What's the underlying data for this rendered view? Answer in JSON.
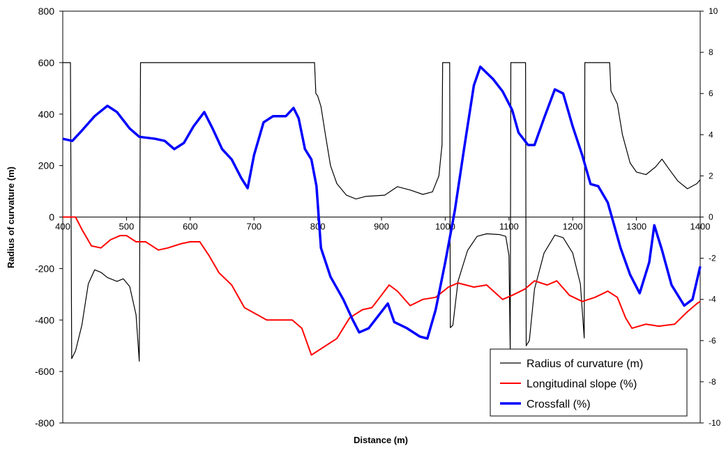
{
  "chart_data": {
    "type": "line",
    "xlabel": "Distance (m)",
    "ylabel": "Radius of curvature (m)",
    "x_ticks": [
      400,
      500,
      600,
      700,
      800,
      900,
      1000,
      1100,
      1200,
      1300,
      1400
    ],
    "y_left_ticks": [
      -800,
      -600,
      -400,
      -200,
      0,
      200,
      400,
      600,
      800
    ],
    "y_right_ticks": [
      -10,
      -8,
      -6,
      -4,
      -2,
      0,
      2,
      4,
      6,
      8,
      10
    ],
    "xlim": [
      400,
      1400
    ],
    "ylim_left": [
      -800,
      800
    ],
    "ylim_right": [
      -10,
      10
    ],
    "grid": false,
    "legend_position": "bottom-right",
    "series": [
      {
        "name": "Radius of curvature (m)",
        "axis": "left",
        "color": "#000000",
        "points": [
          [
            400,
            600
          ],
          [
            412,
            600
          ],
          [
            414,
            -550
          ],
          [
            420,
            -520
          ],
          [
            430,
            -420
          ],
          [
            440,
            -260
          ],
          [
            450,
            -205
          ],
          [
            460,
            -215
          ],
          [
            470,
            -235
          ],
          [
            485,
            -250
          ],
          [
            495,
            -240
          ],
          [
            505,
            -270
          ],
          [
            515,
            -380
          ],
          [
            520,
            -560
          ],
          [
            522,
            600
          ],
          [
            795,
            600
          ],
          [
            797,
            480
          ],
          [
            800,
            470
          ],
          [
            805,
            430
          ],
          [
            812,
            320
          ],
          [
            820,
            200
          ],
          [
            830,
            130
          ],
          [
            845,
            85
          ],
          [
            860,
            70
          ],
          [
            875,
            80
          ],
          [
            905,
            85
          ],
          [
            925,
            118
          ],
          [
            945,
            105
          ],
          [
            965,
            88
          ],
          [
            980,
            98
          ],
          [
            990,
            160
          ],
          [
            995,
            280
          ],
          [
            996,
            600
          ],
          [
            1007,
            600
          ],
          [
            1008,
            -430
          ],
          [
            1012,
            -420
          ],
          [
            1020,
            -250
          ],
          [
            1035,
            -130
          ],
          [
            1050,
            -75
          ],
          [
            1065,
            -65
          ],
          [
            1085,
            -68
          ],
          [
            1095,
            -75
          ],
          [
            1100,
            -150
          ],
          [
            1102,
            -520
          ],
          [
            1103,
            600
          ],
          [
            1126,
            600
          ],
          [
            1127,
            -500
          ],
          [
            1132,
            -480
          ],
          [
            1140,
            -280
          ],
          [
            1155,
            -140
          ],
          [
            1172,
            -70
          ],
          [
            1185,
            -80
          ],
          [
            1200,
            -140
          ],
          [
            1212,
            -260
          ],
          [
            1218,
            -470
          ],
          [
            1219,
            600
          ],
          [
            1258,
            600
          ],
          [
            1260,
            490
          ],
          [
            1270,
            440
          ],
          [
            1278,
            320
          ],
          [
            1290,
            210
          ],
          [
            1300,
            175
          ],
          [
            1315,
            165
          ],
          [
            1330,
            195
          ],
          [
            1340,
            225
          ],
          [
            1350,
            190
          ],
          [
            1365,
            140
          ],
          [
            1380,
            110
          ],
          [
            1395,
            130
          ],
          [
            1400,
            145
          ]
        ]
      },
      {
        "name": "Longitudinal slope (%)",
        "axis": "right",
        "color": "#ff0000",
        "points": [
          [
            400,
            0
          ],
          [
            420,
            0
          ],
          [
            430,
            -0.6
          ],
          [
            445,
            -1.4
          ],
          [
            460,
            -1.5
          ],
          [
            475,
            -1.1
          ],
          [
            490,
            -0.9
          ],
          [
            500,
            -0.9
          ],
          [
            515,
            -1.2
          ],
          [
            530,
            -1.2
          ],
          [
            550,
            -1.6
          ],
          [
            565,
            -1.5
          ],
          [
            585,
            -1.3
          ],
          [
            600,
            -1.2
          ],
          [
            615,
            -1.2
          ],
          [
            630,
            -1.9
          ],
          [
            645,
            -2.7
          ],
          [
            665,
            -3.3
          ],
          [
            685,
            -4.4
          ],
          [
            720,
            -5.0
          ],
          [
            760,
            -5.0
          ],
          [
            775,
            -5.4
          ],
          [
            790,
            -6.7
          ],
          [
            805,
            -6.4
          ],
          [
            830,
            -5.9
          ],
          [
            850,
            -4.9
          ],
          [
            870,
            -4.5
          ],
          [
            885,
            -4.4
          ],
          [
            895,
            -4.0
          ],
          [
            912,
            -3.3
          ],
          [
            925,
            -3.6
          ],
          [
            945,
            -4.3
          ],
          [
            965,
            -4.0
          ],
          [
            985,
            -3.9
          ],
          [
            1005,
            -3.4
          ],
          [
            1020,
            -3.2
          ],
          [
            1045,
            -3.4
          ],
          [
            1065,
            -3.3
          ],
          [
            1090,
            -4.0
          ],
          [
            1105,
            -3.8
          ],
          [
            1125,
            -3.5
          ],
          [
            1140,
            -3.1
          ],
          [
            1160,
            -3.3
          ],
          [
            1175,
            -3.1
          ],
          [
            1195,
            -3.8
          ],
          [
            1215,
            -4.1
          ],
          [
            1235,
            -3.9
          ],
          [
            1255,
            -3.6
          ],
          [
            1270,
            -3.9
          ],
          [
            1283,
            -4.9
          ],
          [
            1293,
            -5.4
          ],
          [
            1315,
            -5.2
          ],
          [
            1335,
            -5.3
          ],
          [
            1360,
            -5.2
          ],
          [
            1380,
            -4.6
          ],
          [
            1395,
            -4.2
          ],
          [
            1400,
            -4.1
          ]
        ]
      },
      {
        "name": "Crossfall (%)",
        "axis": "right",
        "color": "#0000ff",
        "points": [
          [
            400,
            3.8
          ],
          [
            415,
            3.7
          ],
          [
            430,
            4.2
          ],
          [
            450,
            4.9
          ],
          [
            470,
            5.4
          ],
          [
            485,
            5.1
          ],
          [
            505,
            4.3
          ],
          [
            520,
            3.9
          ],
          [
            545,
            3.8
          ],
          [
            560,
            3.7
          ],
          [
            575,
            3.3
          ],
          [
            590,
            3.6
          ],
          [
            605,
            4.4
          ],
          [
            622,
            5.1
          ],
          [
            635,
            4.3
          ],
          [
            650,
            3.3
          ],
          [
            665,
            2.8
          ],
          [
            680,
            1.9
          ],
          [
            690,
            1.4
          ],
          [
            700,
            3.0
          ],
          [
            715,
            4.6
          ],
          [
            730,
            4.9
          ],
          [
            750,
            4.9
          ],
          [
            762,
            5.3
          ],
          [
            770,
            4.8
          ],
          [
            780,
            3.3
          ],
          [
            790,
            2.8
          ],
          [
            798,
            1.5
          ],
          [
            805,
            -1.5
          ],
          [
            820,
            -2.9
          ],
          [
            840,
            -4.0
          ],
          [
            855,
            -5.0
          ],
          [
            865,
            -5.6
          ],
          [
            880,
            -5.4
          ],
          [
            895,
            -4.8
          ],
          [
            910,
            -4.2
          ],
          [
            920,
            -5.1
          ],
          [
            940,
            -5.4
          ],
          [
            960,
            -5.8
          ],
          [
            972,
            -5.9
          ],
          [
            985,
            -4.5
          ],
          [
            1000,
            -2.2
          ],
          [
            1015,
            0.3
          ],
          [
            1030,
            3.4
          ],
          [
            1045,
            6.4
          ],
          [
            1055,
            7.3
          ],
          [
            1075,
            6.7
          ],
          [
            1090,
            6.1
          ],
          [
            1105,
            5.2
          ],
          [
            1115,
            4.1
          ],
          [
            1130,
            3.5
          ],
          [
            1140,
            3.5
          ],
          [
            1155,
            4.8
          ],
          [
            1172,
            6.2
          ],
          [
            1185,
            6.0
          ],
          [
            1200,
            4.4
          ],
          [
            1215,
            3.0
          ],
          [
            1228,
            1.6
          ],
          [
            1240,
            1.5
          ],
          [
            1255,
            0.7
          ],
          [
            1275,
            -1.5
          ],
          [
            1290,
            -2.8
          ],
          [
            1305,
            -3.7
          ],
          [
            1320,
            -2.2
          ],
          [
            1328,
            -0.4
          ],
          [
            1340,
            -1.6
          ],
          [
            1355,
            -3.3
          ],
          [
            1375,
            -4.3
          ],
          [
            1388,
            -4.0
          ],
          [
            1400,
            -2.4
          ]
        ]
      }
    ]
  }
}
